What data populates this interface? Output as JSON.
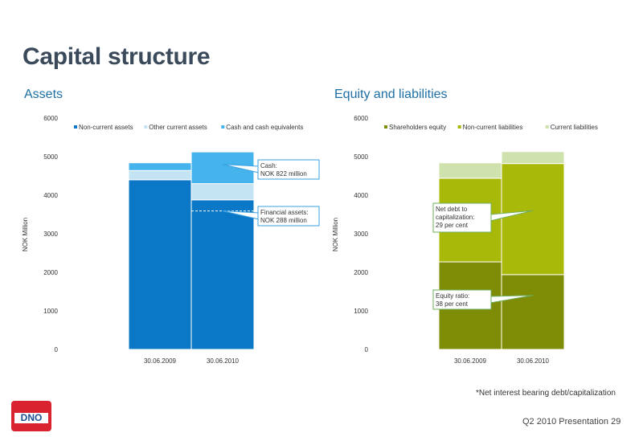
{
  "page": {
    "title": "Capital structure",
    "footnote": "*Net interest bearing debt/capitalization",
    "footer": "Q2 2010 Presentation  29",
    "logo_text": "DNO"
  },
  "colors": {
    "accent_title": "#3b4a5a",
    "accent_section": "#1d6fa5",
    "logo_red": "#d9232e"
  },
  "chart_data": [
    {
      "type": "bar",
      "stacked": true,
      "title": "Assets",
      "ylabel": "NOK Million",
      "ylim": [
        0,
        6000
      ],
      "yticks": [
        0,
        1000,
        2000,
        3000,
        4000,
        5000,
        6000
      ],
      "categories": [
        "30.06.2009",
        "30.06.2010"
      ],
      "legend_position": "top",
      "series": [
        {
          "name": "Non-current assets",
          "color": "#0a78c6",
          "values": [
            4400,
            3880
          ]
        },
        {
          "name": "Other current assets",
          "color": "#c4e3f3",
          "values": [
            240,
            420
          ]
        },
        {
          "name": "Cash and cash equivalents",
          "color": "#45b3ec",
          "values": [
            200,
            822
          ]
        }
      ],
      "dashed_line": {
        "category": 1,
        "value": 3592
      },
      "annotations": [
        {
          "text": [
            "Cash:",
            "NOK 822 million"
          ],
          "target_category": 1,
          "target_value": 4800
        },
        {
          "text": [
            "Financial assets:",
            "NOK  288 million"
          ],
          "target_category": 1,
          "target_value": 3592
        }
      ]
    },
    {
      "type": "bar",
      "stacked": true,
      "title": "Equity and liabilities",
      "ylabel": "NOK Million",
      "ylim": [
        0,
        6000
      ],
      "yticks": [
        0,
        1000,
        2000,
        3000,
        4000,
        5000,
        6000
      ],
      "categories": [
        "30.06.2009",
        "30.06.2010"
      ],
      "legend_position": "top",
      "series": [
        {
          "name": "Shareholders equity",
          "color": "#7f8c05",
          "values": [
            2270,
            1940
          ]
        },
        {
          "name": "Non-current liabilities",
          "color": "#a9b90a",
          "values": [
            2170,
            2880
          ]
        },
        {
          "name": "Current liabilities",
          "color": "#cfe2ad",
          "values": [
            400,
            310
          ]
        }
      ],
      "annotations": [
        {
          "text": [
            "Net debt to",
            "capitalization:",
            "29 per cent"
          ],
          "target_category": 1,
          "target_value": 3600
        },
        {
          "text": [
            "Equity ratio:",
            " 38 per cent"
          ],
          "target_category": 1,
          "target_value": 1400
        }
      ]
    }
  ]
}
